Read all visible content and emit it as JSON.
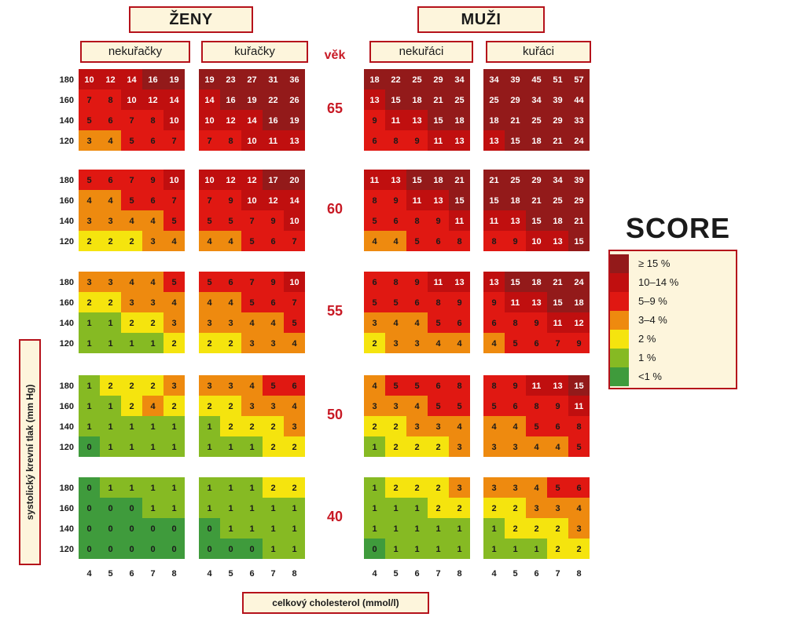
{
  "header": {
    "women": "ŽENY",
    "men": "MUŽI",
    "women_nonsmoker": "nekuřačky",
    "women_smoker": "kuřačky",
    "men_nonsmoker": "nekuřáci",
    "men_smoker": "kuřáci",
    "age_word": "věk"
  },
  "legend": {
    "title": "SCORE",
    "items": [
      {
        "label": "≥ 15 %",
        "color": "#931a1a"
      },
      {
        "label": "10–14 %",
        "color": "#c00f0f"
      },
      {
        "label": "5–9 %",
        "color": "#e01812"
      },
      {
        "label": "3–4 %",
        "color": "#ee8a0f"
      },
      {
        "label": "2 %",
        "color": "#f5e40e"
      },
      {
        "label": "1 %",
        "color": "#86ba23"
      },
      {
        "label": "<1 %",
        "color": "#3f9b3c"
      }
    ]
  },
  "axes": {
    "ylabel": "systolický krevní tlak (mm Hg)",
    "xlabel": "celkový cholesterol (mmol/l)"
  },
  "chart_data": {
    "type": "heatmap",
    "title": "SCORE",
    "xlabel": "celkový cholesterol (mmol/l)",
    "ylabel": "systolický krevní tlak (mm Hg)",
    "x": [
      "4",
      "5",
      "6",
      "7",
      "8"
    ],
    "y": [
      "180",
      "160",
      "140",
      "120"
    ],
    "groups": [
      {
        "sex": "ŽENY",
        "smoking": "nekuřačky"
      },
      {
        "sex": "ŽENY",
        "smoking": "kuřačky"
      },
      {
        "sex": "MUŽI",
        "smoking": "nekuřáci"
      },
      {
        "sex": "MUŽI",
        "smoking": "kuřáci"
      }
    ],
    "ages": [
      {
        "age": "65",
        "grids": [
          [
            [
              10,
              12,
              14,
              16,
              19
            ],
            [
              7,
              8,
              10,
              12,
              14
            ],
            [
              5,
              6,
              7,
              8,
              10
            ],
            [
              3,
              4,
              5,
              6,
              7
            ]
          ],
          [
            [
              19,
              23,
              27,
              31,
              36
            ],
            [
              14,
              16,
              19,
              22,
              26
            ],
            [
              10,
              12,
              14,
              16,
              19
            ],
            [
              7,
              8,
              10,
              11,
              13
            ]
          ],
          [
            [
              18,
              22,
              25,
              29,
              34
            ],
            [
              13,
              15,
              18,
              21,
              25
            ],
            [
              9,
              11,
              13,
              15,
              18
            ],
            [
              6,
              8,
              9,
              11,
              13
            ]
          ],
          [
            [
              34,
              39,
              45,
              51,
              57
            ],
            [
              25,
              29,
              34,
              39,
              44
            ],
            [
              18,
              21,
              25,
              29,
              33
            ],
            [
              13,
              15,
              18,
              21,
              24
            ]
          ]
        ]
      },
      {
        "age": "60",
        "grids": [
          [
            [
              5,
              6,
              7,
              9,
              10
            ],
            [
              4,
              4,
              5,
              6,
              7
            ],
            [
              3,
              3,
              4,
              4,
              5
            ],
            [
              2,
              2,
              2,
              3,
              4
            ]
          ],
          [
            [
              10,
              12,
              12,
              17,
              20
            ],
            [
              7,
              9,
              10,
              12,
              14
            ],
            [
              5,
              5,
              7,
              9,
              10
            ],
            [
              4,
              4,
              5,
              6,
              7
            ]
          ],
          [
            [
              11,
              13,
              15,
              18,
              21
            ],
            [
              8,
              9,
              11,
              13,
              15
            ],
            [
              5,
              6,
              8,
              9,
              11
            ],
            [
              4,
              4,
              5,
              6,
              8
            ]
          ],
          [
            [
              21,
              25,
              29,
              34,
              39
            ],
            [
              15,
              18,
              21,
              25,
              29
            ],
            [
              11,
              13,
              15,
              18,
              21
            ],
            [
              8,
              9,
              10,
              13,
              15
            ]
          ]
        ]
      },
      {
        "age": "55",
        "grids": [
          [
            [
              3,
              3,
              4,
              4,
              5
            ],
            [
              2,
              2,
              3,
              3,
              4
            ],
            [
              1,
              1,
              2,
              2,
              3
            ],
            [
              1,
              1,
              1,
              1,
              2
            ]
          ],
          [
            [
              5,
              6,
              7,
              9,
              10
            ],
            [
              4,
              4,
              5,
              6,
              7
            ],
            [
              3,
              3,
              4,
              4,
              5
            ],
            [
              2,
              2,
              3,
              3,
              4
            ]
          ],
          [
            [
              6,
              8,
              9,
              11,
              13
            ],
            [
              5,
              5,
              6,
              8,
              9
            ],
            [
              3,
              4,
              4,
              5,
              6
            ],
            [
              2,
              3,
              3,
              4,
              4
            ]
          ],
          [
            [
              13,
              15,
              18,
              21,
              24
            ],
            [
              9,
              11,
              13,
              15,
              18
            ],
            [
              6,
              8,
              9,
              11,
              12
            ],
            [
              4,
              5,
              6,
              7,
              9
            ]
          ]
        ]
      },
      {
        "age": "50",
        "grids": [
          [
            [
              1,
              2,
              2,
              2,
              3
            ],
            [
              1,
              1,
              2,
              4,
              2
            ],
            [
              1,
              1,
              1,
              1,
              1
            ],
            [
              0,
              1,
              1,
              1,
              1
            ]
          ],
          [
            [
              3,
              3,
              4,
              5,
              6
            ],
            [
              2,
              2,
              3,
              3,
              4
            ],
            [
              1,
              2,
              2,
              2,
              3
            ],
            [
              1,
              1,
              1,
              2,
              2
            ]
          ],
          [
            [
              4,
              5,
              5,
              6,
              8
            ],
            [
              3,
              3,
              4,
              5,
              5
            ],
            [
              2,
              2,
              3,
              3,
              4
            ],
            [
              1,
              2,
              2,
              2,
              3
            ]
          ],
          [
            [
              8,
              9,
              11,
              13,
              15
            ],
            [
              5,
              6,
              8,
              9,
              11
            ],
            [
              4,
              4,
              5,
              6,
              8
            ],
            [
              3,
              3,
              4,
              4,
              5
            ]
          ]
        ]
      },
      {
        "age": "40",
        "grids": [
          [
            [
              0,
              1,
              1,
              1,
              1
            ],
            [
              0,
              0,
              0,
              1,
              1
            ],
            [
              0,
              0,
              0,
              0,
              0
            ],
            [
              0,
              0,
              0,
              0,
              0
            ]
          ],
          [
            [
              1,
              1,
              1,
              2,
              2
            ],
            [
              1,
              1,
              1,
              1,
              1
            ],
            [
              0,
              1,
              1,
              1,
              1
            ],
            [
              0,
              0,
              0,
              1,
              1
            ]
          ],
          [
            [
              1,
              2,
              2,
              2,
              3
            ],
            [
              1,
              1,
              1,
              2,
              2
            ],
            [
              1,
              1,
              1,
              1,
              1
            ],
            [
              0,
              1,
              1,
              1,
              1
            ]
          ],
          [
            [
              3,
              3,
              4,
              5,
              6
            ],
            [
              2,
              2,
              3,
              3,
              4
            ],
            [
              1,
              2,
              2,
              2,
              3
            ],
            [
              1,
              1,
              1,
              2,
              2
            ]
          ]
        ]
      }
    ]
  }
}
